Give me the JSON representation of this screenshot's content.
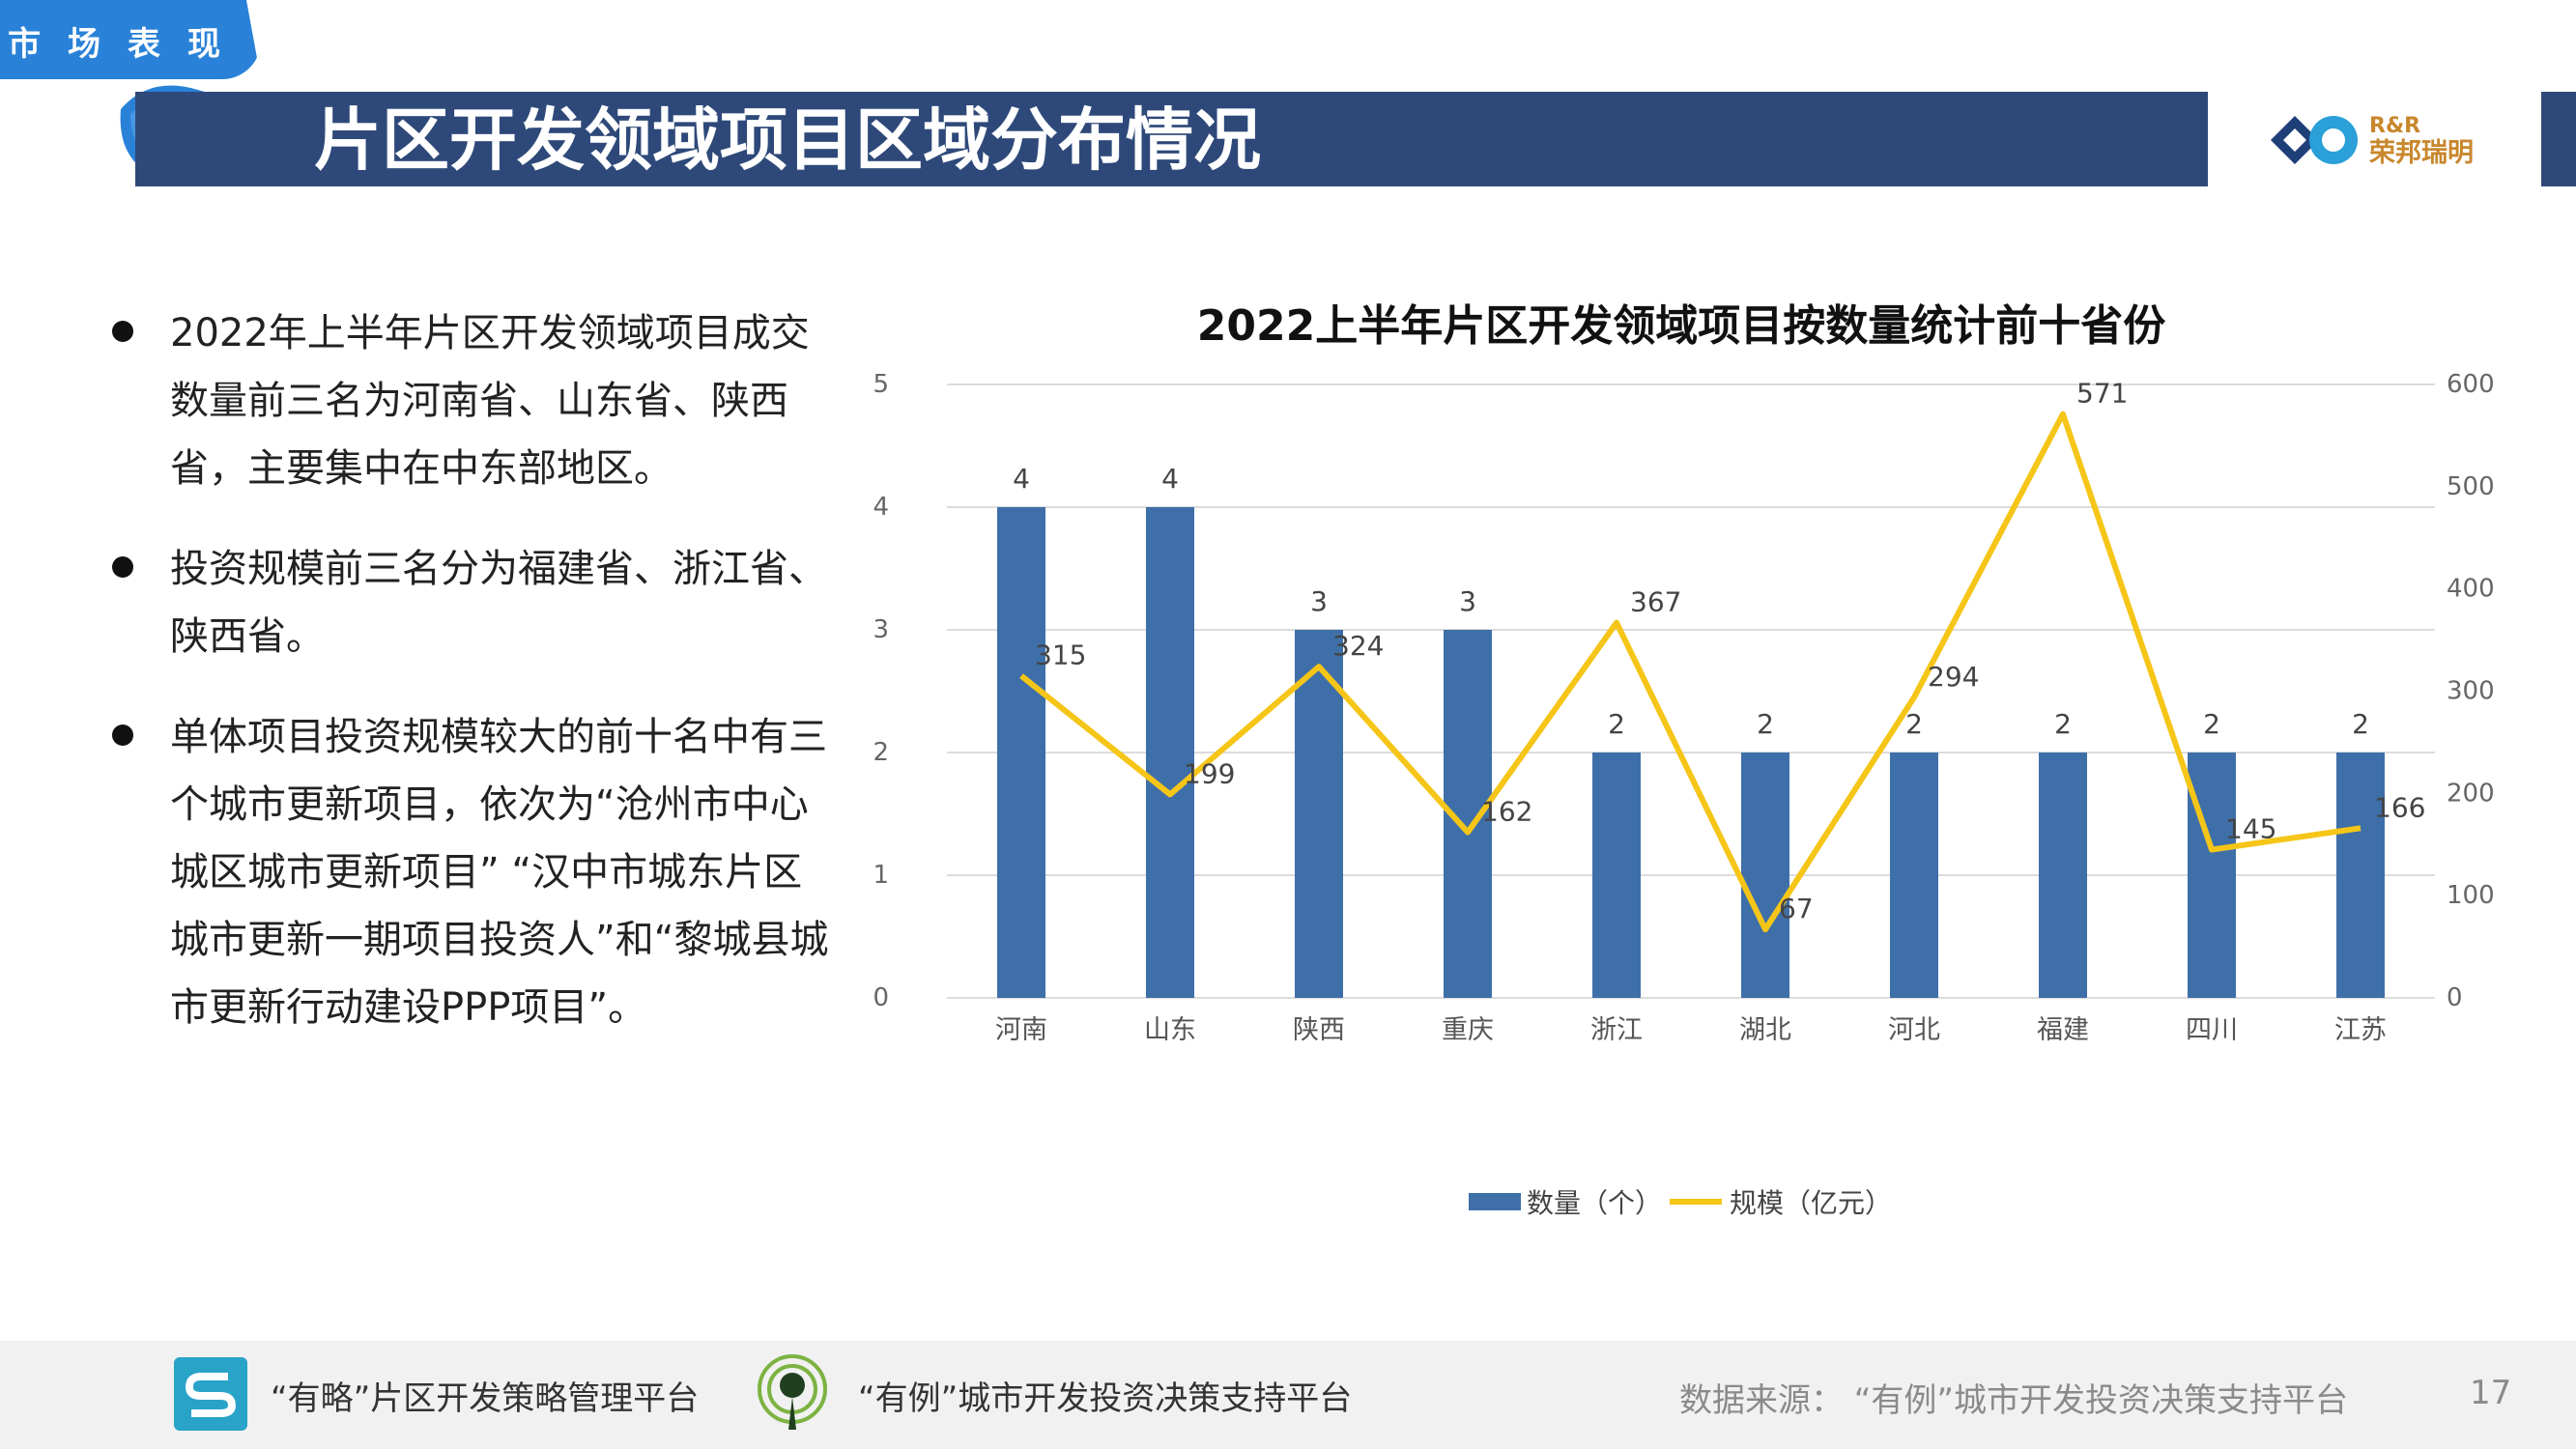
{
  "header": {
    "tag": "市场表现",
    "title": "片区开发领域项目区域分布情况",
    "logo_top": "R&R",
    "logo_bottom": "荣邦瑞明"
  },
  "bullets": [
    "2022年上半年片区开发领域项目成交数量前三名为河南省、山东省、陕西省，主要集中在中东部地区。",
    "投资规模前三名分为福建省、浙江省、陕西省。",
    "单体项目投资规模较大的前十名中有三个城市更新项目，依次为“沧州市中心城区城市更新项目” “汉中市城东片区城市更新一期项目投资人”和“黎城县城市更新行动建设PPP项目”。"
  ],
  "chart_data": {
    "type": "bar",
    "title": "2022上半年片区开发领域项目按数量统计前十省份",
    "categories": [
      "河南",
      "山东",
      "陕西",
      "重庆",
      "浙江",
      "湖北",
      "河北",
      "福建",
      "四川",
      "江苏"
    ],
    "series": [
      {
        "name": "数量（个）",
        "type": "bar",
        "axis": "left",
        "color": "#3f6fa8",
        "values": [
          4,
          4,
          3,
          3,
          2,
          2,
          2,
          2,
          2,
          2
        ]
      },
      {
        "name": "规模（亿元）",
        "type": "line",
        "axis": "right",
        "color": "#f5c518",
        "values": [
          315,
          199,
          324,
          162,
          367,
          67,
          294,
          571,
          145,
          166
        ]
      }
    ],
    "y_left": {
      "min": 0,
      "max": 5,
      "ticks": [
        "0",
        "1",
        "2",
        "3",
        "4",
        "5"
      ]
    },
    "y_right": {
      "min": 0,
      "max": 600,
      "ticks": [
        "0",
        "100",
        "200",
        "300",
        "400",
        "500",
        "600"
      ]
    },
    "grid": true,
    "legend": "bottom"
  },
  "footer": {
    "platform1": "“有略”片区开发策略管理平台",
    "platform2": "“有例”城市开发投资决策支持平台",
    "source": "数据来源：  “有例”城市开发投资决策支持平台",
    "page": "17"
  },
  "colors": {
    "title_bar": "#2e4979",
    "tag": "#2a82d8",
    "bar": "#3f6fa8",
    "line": "#f5c518"
  },
  "icons": {
    "platform1": "s-logo-icon",
    "platform2": "location-pin-icon",
    "brand": "infinity-logo-icon"
  }
}
